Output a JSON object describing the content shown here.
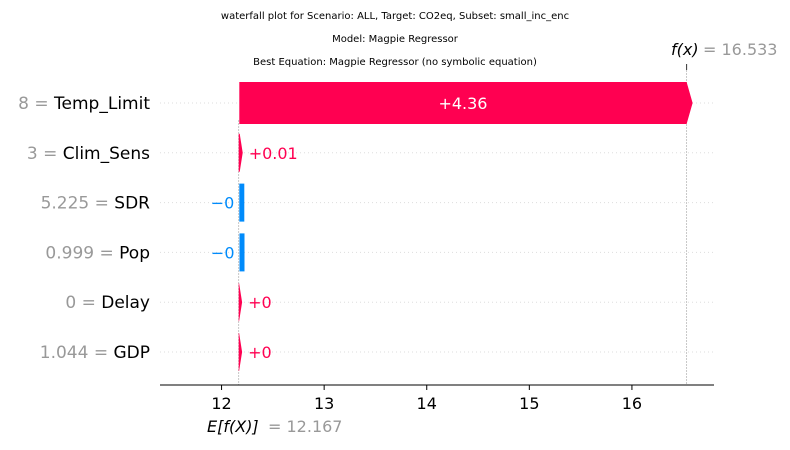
{
  "titles": {
    "line1": "waterfall plot for Scenario: ALL, Target: CO2eq, Subset: small_inc_enc",
    "line2": "Model: Magpie Regressor",
    "line3": "Best Equation: Magpie Regressor (no symbolic equation)"
  },
  "fx": {
    "label": "f(x)",
    "eq": "= 16.533",
    "value": 16.533
  },
  "efx": {
    "label": "E[f(X)]",
    "eq": "= 12.167",
    "value": 12.167
  },
  "colors": {
    "positive": "#ff0051",
    "negative": "#008bfb",
    "axis": "#000000",
    "grey_text": "#999999",
    "grid": "#dddddd"
  },
  "chart_data": {
    "type": "bar",
    "subtype": "waterfall",
    "xlim": [
      11.4,
      16.8
    ],
    "xticks": [
      "12",
      "13",
      "14",
      "15",
      "16"
    ],
    "xtick_values": [
      12,
      13,
      14,
      15,
      16
    ],
    "base_value": 12.167,
    "output_value": 16.533,
    "features": [
      {
        "value": "8",
        "name": "Temp_Limit",
        "contribution": 4.36,
        "label": "+4.36",
        "start": 12.173
      },
      {
        "value": "3",
        "name": "Clim_Sens",
        "contribution": 0.01,
        "label": "+0.01",
        "start": 12.167
      },
      {
        "value": "5.225",
        "name": "SDR",
        "contribution": -0.002,
        "label": "−0",
        "start": 12.175
      },
      {
        "value": "0.999",
        "name": "Pop",
        "contribution": -0.002,
        "label": "−0",
        "start": 12.177
      },
      {
        "value": "0",
        "name": "Delay",
        "contribution": 0.004,
        "label": "+0",
        "start": 12.167
      },
      {
        "value": "1.044",
        "name": "GDP",
        "contribution": 0.004,
        "label": "+0",
        "start": 12.167
      }
    ]
  }
}
